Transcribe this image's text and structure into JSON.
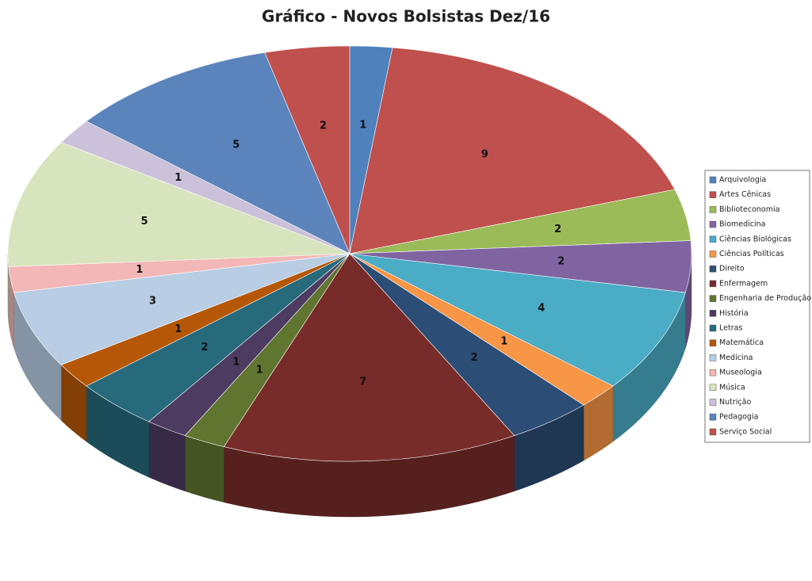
{
  "chart_data": {
    "type": "pie",
    "title": "Gráfico - Novos Bolsistas Dez/16",
    "categories": [
      "Arquivologia",
      "Artes Cênicas",
      "Biblioteconomia",
      "Biomedicina",
      "Ciências Biológicas",
      "Ciências Políticas",
      "Direito",
      "Enfermagem",
      "Engenharia de Produção",
      "História",
      "Letras",
      "Matemática",
      "Medicina",
      "Museologia",
      "Música",
      "Nutrição",
      "Pedagogia",
      "Serviço Social"
    ],
    "values": [
      1,
      9,
      2,
      2,
      4,
      1,
      2,
      7,
      1,
      1,
      2,
      1,
      3,
      1,
      5,
      1,
      5,
      2
    ],
    "colors": [
      "#4f81bd",
      "#c0504d",
      "#9bbb59",
      "#8064a2",
      "#4bacc6",
      "#f79646",
      "#2c4d75",
      "#772c2a",
      "#5f7530",
      "#4d3b62",
      "#276a7c",
      "#b65708",
      "#b9cde5",
      "#f2b7b6",
      "#d7e4bd",
      "#ccc1da",
      "#5b84bd",
      "#c0504d"
    ],
    "legend": "right"
  }
}
